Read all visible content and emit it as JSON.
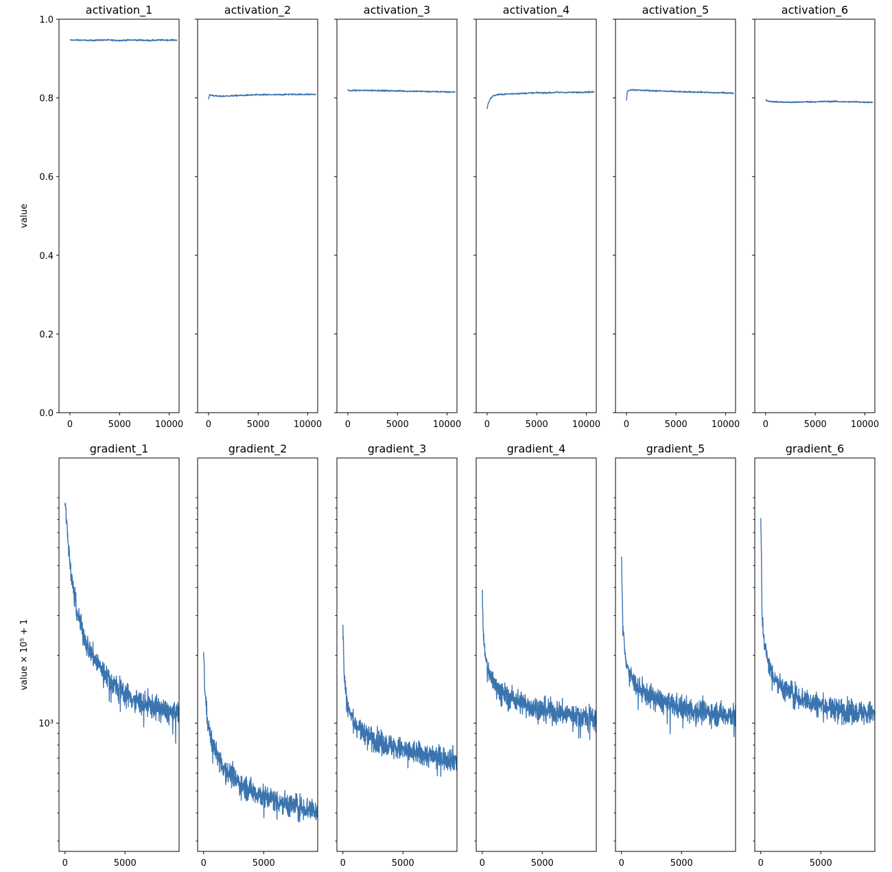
{
  "chart_data": [
    {
      "type": "line",
      "title": "activation_1",
      "ylabel": "value",
      "xlim": [
        -1100,
        11000
      ],
      "ylim": [
        0.0,
        1.0
      ],
      "xticks": [
        "0",
        "5000",
        "10000"
      ],
      "yticks": [
        "0.0",
        "0.2",
        "0.4",
        "0.6",
        "0.8",
        "1.0"
      ],
      "series": [
        {
          "x": [
            0,
            1000,
            2000,
            3000,
            4000,
            5000,
            6000,
            7000,
            8000,
            9000,
            10000,
            10800
          ],
          "y": [
            0.947,
            0.947,
            0.946,
            0.947,
            0.947,
            0.946,
            0.947,
            0.947,
            0.946,
            0.947,
            0.947,
            0.947
          ]
        }
      ]
    },
    {
      "type": "line",
      "title": "activation_2",
      "xlim": [
        -1100,
        11000
      ],
      "ylim": [
        0.0,
        1.0
      ],
      "xticks": [
        "0",
        "5000",
        "10000"
      ],
      "series": [
        {
          "x": [
            0,
            100,
            500,
            1000,
            2000,
            3000,
            4000,
            5000,
            6000,
            7000,
            8000,
            9000,
            10000,
            10800
          ],
          "y": [
            0.795,
            0.808,
            0.806,
            0.804,
            0.805,
            0.806,
            0.807,
            0.808,
            0.808,
            0.808,
            0.809,
            0.809,
            0.809,
            0.809
          ]
        }
      ]
    },
    {
      "type": "line",
      "title": "activation_3",
      "xlim": [
        -1100,
        11000
      ],
      "ylim": [
        0.0,
        1.0
      ],
      "xticks": [
        "0",
        "5000",
        "10000"
      ],
      "series": [
        {
          "x": [
            0,
            100,
            500,
            1000,
            2000,
            3000,
            4000,
            5000,
            6000,
            7000,
            8000,
            9000,
            10000,
            10800
          ],
          "y": [
            0.822,
            0.818,
            0.819,
            0.819,
            0.819,
            0.819,
            0.818,
            0.818,
            0.817,
            0.817,
            0.816,
            0.816,
            0.815,
            0.815
          ]
        }
      ]
    },
    {
      "type": "line",
      "title": "activation_4",
      "xlim": [
        -1100,
        11000
      ],
      "ylim": [
        0.0,
        1.0
      ],
      "xticks": [
        "0",
        "5000",
        "10000"
      ],
      "series": [
        {
          "x": [
            0,
            100,
            300,
            600,
            1000,
            2000,
            3000,
            4000,
            5000,
            6000,
            7000,
            8000,
            9000,
            10000,
            10800
          ],
          "y": [
            0.773,
            0.785,
            0.797,
            0.805,
            0.808,
            0.81,
            0.811,
            0.812,
            0.813,
            0.813,
            0.814,
            0.814,
            0.814,
            0.815,
            0.815
          ]
        }
      ]
    },
    {
      "type": "line",
      "title": "activation_5",
      "xlim": [
        -1100,
        11000
      ],
      "ylim": [
        0.0,
        1.0
      ],
      "xticks": [
        "0",
        "5000",
        "10000"
      ],
      "series": [
        {
          "x": [
            0,
            100,
            500,
            1000,
            2000,
            3000,
            4000,
            5000,
            6000,
            7000,
            8000,
            9000,
            10000,
            10800
          ],
          "y": [
            0.792,
            0.818,
            0.821,
            0.82,
            0.819,
            0.818,
            0.817,
            0.816,
            0.815,
            0.815,
            0.814,
            0.813,
            0.813,
            0.812
          ]
        }
      ]
    },
    {
      "type": "line",
      "title": "activation_6",
      "xlim": [
        -1100,
        11000
      ],
      "ylim": [
        0.0,
        1.0
      ],
      "xticks": [
        "0",
        "5000",
        "10000"
      ],
      "series": [
        {
          "x": [
            0,
            100,
            500,
            1000,
            2000,
            3000,
            4000,
            5000,
            6000,
            7000,
            8000,
            9000,
            10000,
            10800
          ],
          "y": [
            0.798,
            0.793,
            0.791,
            0.79,
            0.789,
            0.789,
            0.79,
            0.79,
            0.791,
            0.791,
            0.79,
            0.79,
            0.789,
            0.789
          ]
        }
      ]
    },
    {
      "type": "line",
      "title": "gradient_1",
      "ylabel": "value × 10⁵ + 1",
      "yscale": "log",
      "xlim": [
        -500,
        9500
      ],
      "ylim": [
        270,
        15000
      ],
      "xticks": [
        "0",
        "5000"
      ],
      "yticks": [
        "10³"
      ],
      "series": [
        {
          "x": [
            0,
            200,
            500,
            1000,
            1500,
            2000,
            3000,
            4000,
            5000,
            6000,
            7000,
            8000,
            9000,
            9500
          ],
          "y": [
            9500,
            7000,
            4500,
            3100,
            2500,
            2100,
            1750,
            1500,
            1350,
            1250,
            1200,
            1150,
            1100,
            1100
          ]
        }
      ]
    },
    {
      "type": "line",
      "title": "gradient_2",
      "xlim": [
        -500,
        9500
      ],
      "ylim": [
        270,
        15000
      ],
      "xticks": [
        "0",
        "5000"
      ],
      "series": [
        {
          "x": [
            0,
            100,
            300,
            600,
            1000,
            1500,
            2000,
            3000,
            4000,
            5000,
            6000,
            7000,
            8000,
            9000,
            9500
          ],
          "y": [
            2100,
            1400,
            1050,
            850,
            750,
            660,
            610,
            540,
            500,
            475,
            455,
            440,
            425,
            415,
            410
          ]
        }
      ]
    },
    {
      "type": "line",
      "title": "gradient_3",
      "xlim": [
        -500,
        9500
      ],
      "ylim": [
        270,
        15000
      ],
      "xticks": [
        "0",
        "5000"
      ],
      "series": [
        {
          "x": [
            0,
            100,
            300,
            600,
            1000,
            1500,
            2000,
            3000,
            4000,
            5000,
            6000,
            7000,
            8000,
            9000,
            9500
          ],
          "y": [
            2600,
            1650,
            1250,
            1100,
            1000,
            940,
            890,
            830,
            790,
            760,
            740,
            720,
            705,
            695,
            690
          ]
        }
      ]
    },
    {
      "type": "line",
      "title": "gradient_4",
      "xlim": [
        -500,
        9500
      ],
      "ylim": [
        270,
        15000
      ],
      "xticks": [
        "0",
        "5000"
      ],
      "series": [
        {
          "x": [
            0,
            100,
            300,
            600,
            1000,
            1500,
            2000,
            3000,
            4000,
            5000,
            6000,
            7000,
            8000,
            9000,
            9500
          ],
          "y": [
            3800,
            2400,
            1900,
            1650,
            1500,
            1400,
            1330,
            1250,
            1190,
            1150,
            1120,
            1100,
            1080,
            1060,
            1050
          ]
        }
      ]
    },
    {
      "type": "line",
      "title": "gradient_5",
      "xlim": [
        -500,
        9500
      ],
      "ylim": [
        270,
        15000
      ],
      "xticks": [
        "0",
        "5000"
      ],
      "series": [
        {
          "x": [
            0,
            100,
            300,
            600,
            1000,
            1500,
            2000,
            3000,
            4000,
            5000,
            6000,
            7000,
            8000,
            9000,
            9500
          ],
          "y": [
            5300,
            2700,
            2000,
            1700,
            1530,
            1420,
            1350,
            1270,
            1210,
            1170,
            1140,
            1120,
            1100,
            1090,
            1085
          ]
        }
      ]
    },
    {
      "type": "line",
      "title": "gradient_6",
      "xlim": [
        -500,
        9500
      ],
      "ylim": [
        270,
        15000
      ],
      "xticks": [
        "0",
        "5000"
      ],
      "series": [
        {
          "x": [
            0,
            100,
            300,
            600,
            1000,
            1500,
            2000,
            3000,
            4000,
            5000,
            6000,
            7000,
            8000,
            9000,
            9500
          ],
          "y": [
            8000,
            3000,
            2250,
            1850,
            1650,
            1500,
            1420,
            1320,
            1250,
            1200,
            1170,
            1140,
            1120,
            1105,
            1100
          ]
        }
      ]
    }
  ]
}
